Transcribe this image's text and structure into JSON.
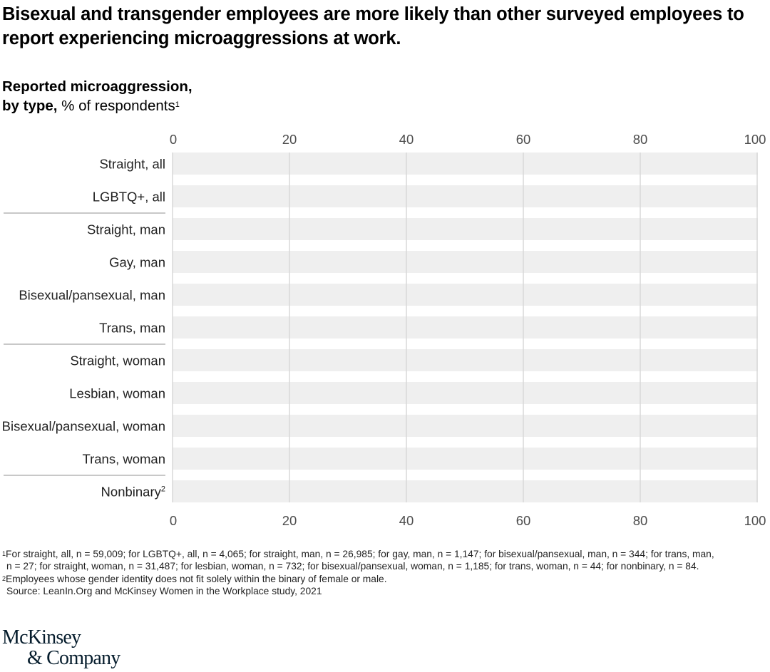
{
  "title": "Bisexual and transgender employees are more likely than other surveyed employees to report experiencing microaggressions at work.",
  "subtitle": {
    "bold_line1": "Reported microaggression,",
    "bold_line2": "by type,",
    "normal": " % of respondents",
    "footnote_ref": "1"
  },
  "colors": {
    "track": "#efefef",
    "gridline": "#d6d6d6",
    "separator": "#a6a6a6",
    "axis_text": "#4d4d4d",
    "label_text": "#222222",
    "logo": "#051c2c"
  },
  "chart_data": {
    "type": "bar",
    "orientation": "horizontal",
    "title": "Reported microaggression, by type, % of respondents",
    "xlabel": "% of respondents",
    "ylabel": "",
    "xlim": [
      0,
      100
    ],
    "xticks": [
      0,
      20,
      40,
      60,
      80,
      100
    ],
    "tick_labels": [
      "0",
      "20",
      "40",
      "60",
      "80",
      "100"
    ],
    "grid": true,
    "categories": [
      {
        "label": "Straight, all",
        "sup": ""
      },
      {
        "label": "LGBTQ+, all",
        "sup": ""
      },
      {
        "label": "Straight, man",
        "sup": ""
      },
      {
        "label": "Gay, man",
        "sup": ""
      },
      {
        "label": "Bisexual/pansexual, man",
        "sup": ""
      },
      {
        "label": "Trans, man",
        "sup": ""
      },
      {
        "label": "Straight, woman",
        "sup": ""
      },
      {
        "label": "Lesbian, woman",
        "sup": ""
      },
      {
        "label": "Bisexual/pansexual, woman",
        "sup": ""
      },
      {
        "label": "Trans, woman",
        "sup": ""
      },
      {
        "label": "Nonbinary",
        "sup": "2"
      }
    ],
    "group_separators_after_index": [
      1,
      5,
      9
    ],
    "values": [
      null,
      null,
      null,
      null,
      null,
      null,
      null,
      null,
      null,
      null,
      null
    ],
    "note": "Bars show only empty 0–100 background tracks; no value fills visible."
  },
  "footnotes": {
    "fn1_marker": "1",
    "fn1_line1": "For straight, all, n = 59,009; for LGBTQ+, all, n = 4,065; for straight, man, n = 26,985; for gay, man, n = 1,147; for bisexual/pansexual, man, n = 344; for trans, man,",
    "fn1_line2": "n = 27; for straight, woman, n = 31,487; for lesbian, woman, n = 732; for bisexual/pansexual, woman, n = 1,185; for trans, woman, n = 44; for nonbinary, n = 84.",
    "fn2_marker": "2",
    "fn2_text": "Employees whose gender identity does not fit solely within the binary of female or male.",
    "source": "Source: LeanIn.Org and McKinsey Women in the Workplace study, 2021"
  },
  "logo": {
    "line1": "McKinsey",
    "line2": "& Company"
  }
}
